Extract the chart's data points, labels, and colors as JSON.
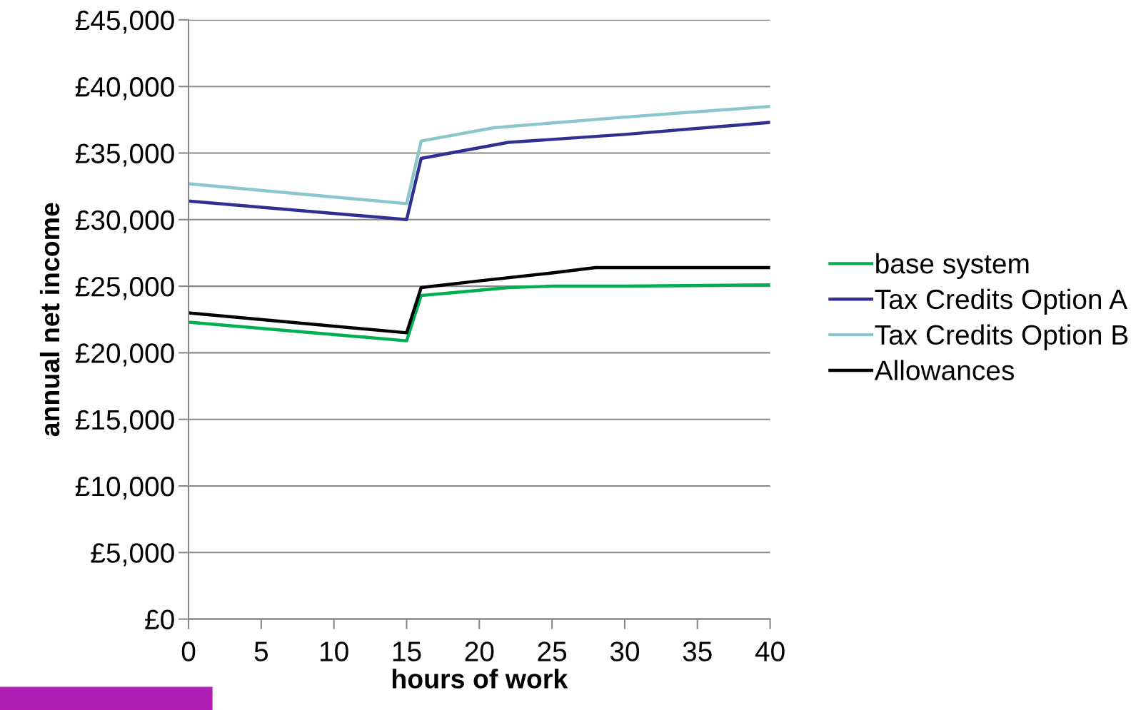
{
  "chart_data": {
    "type": "line",
    "xlabel": "hours of work",
    "ylabel": "annual net income",
    "xlim": [
      0,
      40
    ],
    "xticks": [
      0,
      5,
      10,
      15,
      20,
      25,
      30,
      35,
      40
    ],
    "ylim": [
      0,
      45000
    ],
    "yticks": [
      {
        "value": 0,
        "label": "£0"
      },
      {
        "value": 5000,
        "label": "£5,000"
      },
      {
        "value": 10000,
        "label": "£10,000"
      },
      {
        "value": 15000,
        "label": "£15,000"
      },
      {
        "value": 20000,
        "label": "£20,000"
      },
      {
        "value": 25000,
        "label": "£25,000"
      },
      {
        "value": 30000,
        "label": "£30,000"
      },
      {
        "value": 35000,
        "label": "£35,000"
      },
      {
        "value": 40000,
        "label": "£40,000"
      },
      {
        "value": 45000,
        "label": "£45,000"
      }
    ],
    "grid": "y",
    "legend": "right",
    "marker": "none",
    "line_style": "solid",
    "series": [
      {
        "name": "base system",
        "color": "#00b050",
        "x": [
          0,
          15,
          16,
          18,
          22,
          25,
          30,
          40
        ],
        "values": [
          22300,
          20900,
          24300,
          24500,
          24900,
          25000,
          25000,
          25100
        ]
      },
      {
        "name": "Tax Credits Option A",
        "color": "#2e3192",
        "x": [
          0,
          15,
          16,
          22,
          30,
          40
        ],
        "values": [
          31400,
          30000,
          34600,
          35800,
          36400,
          37300
        ]
      },
      {
        "name": "Tax Credits Option B",
        "color": "#8bc6cc",
        "x": [
          0,
          15,
          16,
          21,
          30,
          40
        ],
        "values": [
          32700,
          31200,
          35900,
          36900,
          37700,
          38500
        ]
      },
      {
        "name": "Allowances",
        "color": "#000000",
        "x": [
          0,
          15,
          16,
          20,
          25,
          28,
          35,
          40
        ],
        "values": [
          23000,
          21500,
          24900,
          25400,
          26000,
          26400,
          26400,
          26400
        ]
      }
    ]
  }
}
